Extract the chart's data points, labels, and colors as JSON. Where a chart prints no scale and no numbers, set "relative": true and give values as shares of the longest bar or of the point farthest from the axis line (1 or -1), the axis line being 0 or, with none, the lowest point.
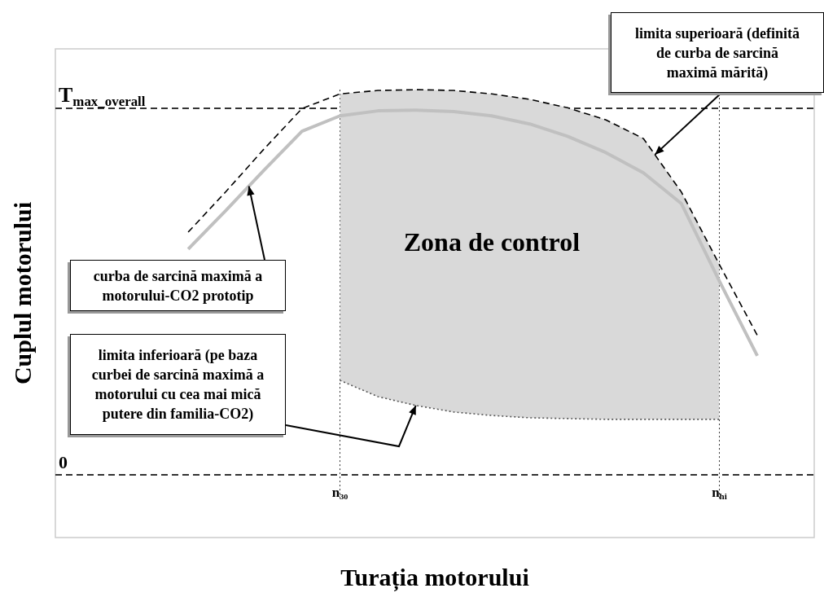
{
  "chart_data": {
    "type": "line",
    "relative": true,
    "xlabel": "Turația motorului",
    "ylabel": "Cuplul motorului",
    "legend": false,
    "marker": "none",
    "categories": [
      null,
      null,
      null,
      null,
      null,
      null,
      null,
      "n₃₀",
      null,
      null,
      null,
      null,
      null,
      null,
      null,
      null,
      null,
      "n$_{hi}$",
      null,
      null
    ],
    "series": [
      {
        "color": "#000000",
        "line_style": "dashed",
        "values": [
          null,
          null,
          null,
          0.63,
          0.736,
          0.846,
          0.951,
          0.989,
          0.998,
          1.0,
          0.998,
          0.989,
          0.975,
          0.953,
          0.922,
          0.873,
          0.734,
          0.546,
          0.362,
          null
        ]
      },
      {
        "color": "#c0c0c0",
        "line_style": "solid",
        "values": [
          null,
          null,
          null,
          0.586,
          0.687,
          0.791,
          0.892,
          0.932,
          0.945,
          0.947,
          0.943,
          0.932,
          0.911,
          0.879,
          0.837,
          0.784,
          0.704,
          0.503,
          0.309,
          null
        ]
      },
      {
        "color": "#555555",
        "line_style": "dotted",
        "values": [
          null,
          null,
          null,
          null,
          null,
          null,
          null,
          0.245,
          0.203,
          0.18,
          0.163,
          0.154,
          0.148,
          0.146,
          0.144,
          0.144,
          0.144,
          0.144,
          null,
          null
        ]
      },
      {
        "type": "area",
        "color": "#d9d9d9",
        "values": [
          null,
          null,
          null,
          null,
          null,
          null,
          null,
          0.989,
          0.998,
          1.0,
          0.998,
          0.989,
          0.975,
          0.953,
          0.922,
          0.873,
          0.734,
          0.546,
          null,
          null
        ]
      }
    ],
    "ref_lines": [
      {
        "axis": "y",
        "value": 0,
        "label": "0",
        "color": "#333333",
        "line_style": "dashed"
      },
      {
        "axis": "y",
        "value": 0.951,
        "label": "T$_{max_overall}$",
        "color": "#333333",
        "line_style": "dashed"
      },
      {
        "axis": "x",
        "value": "n₃₀",
        "label": null,
        "color": "#333333",
        "line_style": "dotted"
      },
      {
        "axis": "x",
        "value": "n$_{hi}$",
        "label": null,
        "color": "#333333",
        "line_style": "dotted"
      }
    ],
    "annotations": [
      "Zona de control",
      "limita superioară (definită\nde curba de sarcină\nmaximă mărită)",
      "curba de sarcină maximă a\nmotorului-CO2 prototip",
      "limita inferioară (pe baza\ncurbei de sarcină maximă a\nmotorului cu cea mai mică\nputere din familia-CO2)"
    ]
  }
}
